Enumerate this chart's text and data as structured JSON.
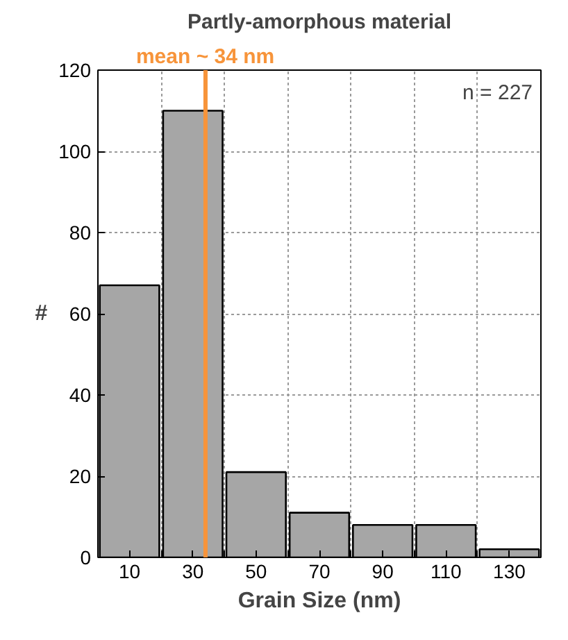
{
  "chart_data": {
    "type": "histogram",
    "title": "Partly-amorphous material",
    "xlabel": "Grain Size (nm)",
    "ylabel": "#",
    "bins": [
      0,
      20,
      40,
      60,
      80,
      100,
      120,
      140
    ],
    "values": [
      67,
      110,
      21,
      11,
      8,
      8,
      2
    ],
    "color": "#a6a6a6",
    "xlim": [
      0,
      140
    ],
    "ylim": [
      0,
      120
    ],
    "xticks": [
      10,
      {
        "value": 20,
        "label": null
      },
      30,
      {
        "value": 40,
        "label": null
      },
      50,
      {
        "value": 60,
        "label": null
      },
      70,
      {
        "value": 80,
        "label": null
      },
      90,
      {
        "value": 100,
        "label": null
      },
      110,
      {
        "value": 120,
        "label": null
      },
      130
    ],
    "yticks": [
      0,
      20,
      40,
      60,
      80,
      100,
      120
    ],
    "grid": true,
    "ref_lines": [
      {
        "axis": "x",
        "value": 34,
        "label": "mean ~ 34 nm",
        "color": "#f7943a"
      }
    ],
    "annotations": [
      "n = 227"
    ]
  }
}
